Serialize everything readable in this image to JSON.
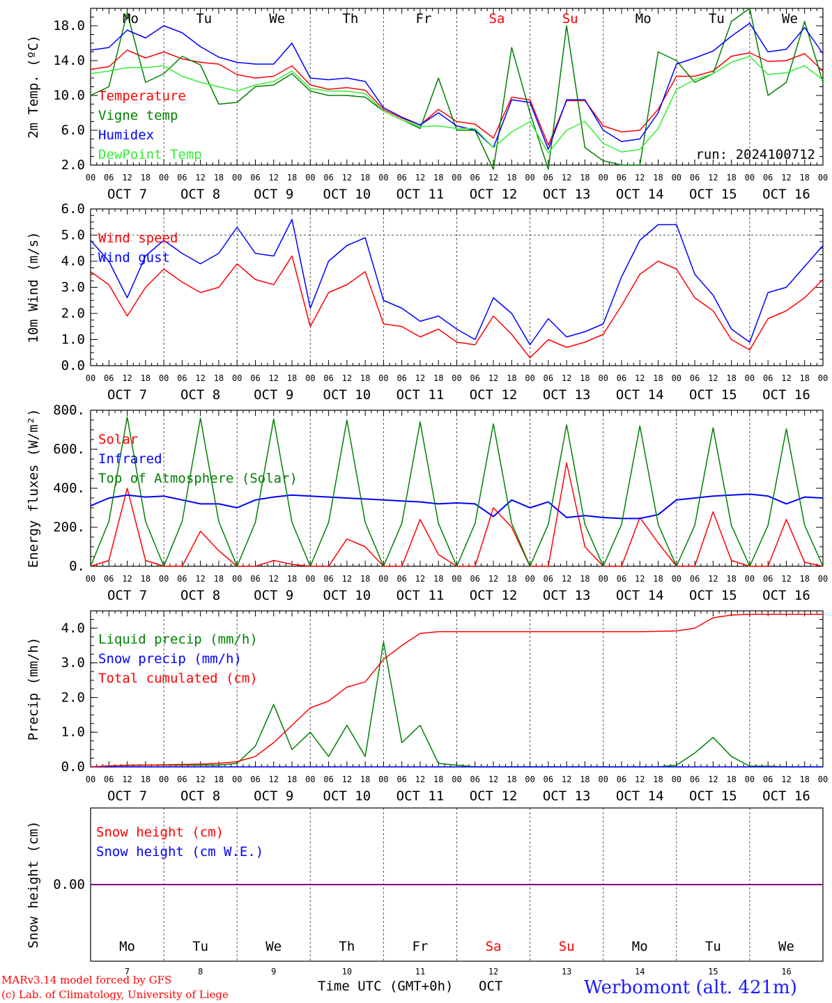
{
  "page": {
    "station": "Werbomont (alt. 421m)",
    "footer_line1": "MARv3.14 model forced by GFS",
    "footer_line2": "(c) Lab. of Climatology, University of Liege",
    "xaxis_title": "Time UTC (GMT+0h)",
    "month": "OCT"
  },
  "colors": {
    "red": "#ff0000",
    "green": "#008000",
    "blue": "#0000ff",
    "lightgreen": "#33ee33",
    "purple": "#800080",
    "weekend": "#ff0000",
    "station": "#1a1aff"
  },
  "days": [
    {
      "weekday": "Mo",
      "date_label": "OCT  7",
      "day": "7"
    },
    {
      "weekday": "Tu",
      "date_label": "OCT  8",
      "day": "8"
    },
    {
      "weekday": "We",
      "date_label": "OCT  9",
      "day": "9"
    },
    {
      "weekday": "Th",
      "date_label": "OCT 10",
      "day": "10"
    },
    {
      "weekday": "Fr",
      "date_label": "OCT 11",
      "day": "11"
    },
    {
      "weekday": "Sa",
      "date_label": "OCT 12",
      "day": "12",
      "weekend": true
    },
    {
      "weekday": "Su",
      "date_label": "OCT 13",
      "day": "13",
      "weekend": true
    },
    {
      "weekday": "Mo",
      "date_label": "OCT 14",
      "day": "14"
    },
    {
      "weekday": "Tu",
      "date_label": "OCT 15",
      "day": "15"
    },
    {
      "weekday": "We",
      "date_label": "OCT 16",
      "day": "16"
    }
  ],
  "hour_ticks": [
    "00",
    "06",
    "12",
    "18"
  ],
  "chart_data": [
    {
      "type": "line",
      "ylabel": "2m Temp. (ºC)",
      "ylim": [
        2,
        20
      ],
      "yticks": [
        "2.0",
        "6.0",
        "10.0",
        "14.0",
        "18.0"
      ],
      "ytick_values": [
        2,
        6,
        10,
        14,
        18
      ],
      "annotation": "run: 2024100712",
      "x_hours": [
        0,
        6,
        12,
        18,
        24,
        30,
        36,
        42,
        48,
        54,
        60,
        66,
        72,
        78,
        84,
        90,
        96,
        102,
        108,
        114,
        120,
        126,
        132,
        138,
        144,
        150,
        156,
        162,
        168,
        174,
        180,
        186,
        192,
        198,
        204,
        210,
        216,
        222,
        228,
        234,
        240
      ],
      "series": [
        {
          "name": "Temperature",
          "color": "red",
          "values": [
            13,
            13.3,
            15.2,
            14.3,
            15,
            14.2,
            13.8,
            13.6,
            12.4,
            12,
            12.2,
            13.4,
            11.2,
            10.7,
            10.9,
            10.6,
            8.4,
            7.4,
            6.6,
            8.4,
            7,
            6.7,
            5.1,
            9.8,
            9.5,
            4.3,
            9.4,
            9.4,
            6.5,
            5.8,
            6,
            8.4,
            12.2,
            12.2,
            12.8,
            14.5,
            14.9,
            13.9,
            14,
            14.8,
            12.8
          ]
        },
        {
          "name": "Vigne temp",
          "color": "green",
          "values": [
            10,
            11,
            19.5,
            11.5,
            12.5,
            14.5,
            13.5,
            9,
            9.2,
            11,
            11.2,
            12.5,
            10.5,
            10,
            10,
            9.8,
            8.2,
            7.2,
            6.2,
            12,
            6,
            6,
            1.5,
            15.5,
            8,
            1.5,
            18,
            4,
            2.5,
            2,
            2,
            15,
            14,
            11.5,
            12.5,
            18.5,
            20,
            10,
            11.5,
            18.5,
            11.5
          ]
        },
        {
          "name": "Humidex",
          "color": "blue",
          "values": [
            15.2,
            15.5,
            17.5,
            16.6,
            18,
            17.2,
            15.6,
            14.4,
            13.8,
            13.6,
            13.6,
            16,
            12,
            11.8,
            12,
            11.6,
            8.6,
            7.5,
            6.6,
            8,
            6.5,
            6,
            4,
            9.5,
            9.2,
            3.8,
            9.5,
            9.5,
            6,
            4.7,
            5,
            8,
            13.6,
            14.3,
            15.1,
            16.8,
            18.3,
            15,
            15.3,
            17.8,
            14.8
          ]
        },
        {
          "name": "DewPoint Temp",
          "color": "lightgreen",
          "values": [
            12.5,
            12.8,
            13.2,
            13.2,
            13.4,
            12.2,
            11.5,
            11,
            10.5,
            11.2,
            11.6,
            12.8,
            10.8,
            10.5,
            10.5,
            10.2,
            8.2,
            7.2,
            6.4,
            6.5,
            6.2,
            6.2,
            4,
            5.8,
            7,
            3.4,
            6,
            7,
            4.5,
            3.5,
            3.8,
            6.2,
            10.7,
            11.8,
            12.5,
            13.8,
            14.5,
            12.4,
            12.6,
            13.4,
            11.8
          ]
        }
      ]
    },
    {
      "type": "line",
      "ylabel": "10m Wind (m/s)",
      "ylim": [
        0,
        6
      ],
      "yticks": [
        "0.0",
        "1.0",
        "2.0",
        "3.0",
        "4.0",
        "5.0",
        "6.0"
      ],
      "ytick_values": [
        0,
        1,
        2,
        3,
        4,
        5,
        6
      ],
      "reference_line": 5,
      "x_hours": [
        0,
        6,
        12,
        18,
        24,
        30,
        36,
        42,
        48,
        54,
        60,
        66,
        72,
        78,
        84,
        90,
        96,
        102,
        108,
        114,
        120,
        126,
        132,
        138,
        144,
        150,
        156,
        162,
        168,
        174,
        180,
        186,
        192,
        198,
        204,
        210,
        216,
        222,
        228,
        234,
        240
      ],
      "series": [
        {
          "name": "Wind speed",
          "color": "red",
          "values": [
            3.6,
            3.1,
            1.9,
            3,
            3.7,
            3.2,
            2.8,
            3,
            3.9,
            3.3,
            3.1,
            4.2,
            1.5,
            2.8,
            3.1,
            3.6,
            1.6,
            1.5,
            1.1,
            1.4,
            0.9,
            0.8,
            1.9,
            1.2,
            0.3,
            1,
            0.7,
            0.9,
            1.2,
            2.3,
            3.5,
            4,
            3.7,
            2.6,
            2.1,
            1,
            0.6,
            1.8,
            2.1,
            2.6,
            3.3
          ]
        },
        {
          "name": "Wind gust",
          "color": "blue",
          "values": [
            4.8,
            4,
            2.6,
            4.2,
            4.8,
            4.3,
            3.9,
            4.3,
            5.3,
            4.3,
            4.2,
            5.6,
            2.2,
            4,
            4.6,
            4.9,
            2.5,
            2.2,
            1.7,
            1.9,
            1.4,
            1,
            2.6,
            2,
            0.8,
            1.8,
            1.1,
            1.3,
            1.6,
            3.4,
            4.8,
            5.4,
            5.4,
            3.5,
            2.7,
            1.4,
            0.9,
            2.8,
            3,
            3.8,
            4.6
          ]
        }
      ]
    },
    {
      "type": "line",
      "ylabel": "Energy fluxes (W/m²)",
      "ylim": [
        0,
        800
      ],
      "yticks": [
        "0.",
        "200.",
        "400.",
        "600.",
        "800."
      ],
      "ytick_values": [
        0,
        200,
        400,
        600,
        800
      ],
      "x_hours": [
        0,
        6,
        12,
        18,
        24,
        30,
        36,
        42,
        48,
        54,
        60,
        66,
        72,
        78,
        84,
        90,
        96,
        102,
        108,
        114,
        120,
        126,
        132,
        138,
        144,
        150,
        156,
        162,
        168,
        174,
        180,
        186,
        192,
        198,
        204,
        210,
        216,
        222,
        228,
        234,
        240
      ],
      "series": [
        {
          "name": "Solar",
          "color": "red",
          "values": [
            0,
            30,
            400,
            30,
            0,
            0,
            180,
            80,
            0,
            0,
            30,
            10,
            0,
            0,
            140,
            100,
            0,
            0,
            240,
            60,
            0,
            0,
            300,
            200,
            0,
            0,
            530,
            100,
            0,
            0,
            250,
            120,
            0,
            0,
            280,
            30,
            0,
            0,
            240,
            20,
            0
          ]
        },
        {
          "name": "Infrared",
          "color": "blue",
          "values": [
            310,
            350,
            365,
            355,
            360,
            340,
            320,
            320,
            300,
            340,
            355,
            365,
            360,
            355,
            350,
            345,
            340,
            335,
            330,
            320,
            325,
            320,
            255,
            340,
            300,
            330,
            250,
            260,
            250,
            245,
            245,
            265,
            340,
            350,
            360,
            365,
            370,
            360,
            320,
            355,
            350
          ]
        },
        {
          "name": "Top of Atmosphere (Solar)",
          "color": "green",
          "values": [
            0,
            230,
            765,
            230,
            0,
            230,
            760,
            230,
            0,
            225,
            755,
            225,
            0,
            225,
            750,
            225,
            0,
            220,
            740,
            220,
            0,
            220,
            730,
            220,
            0,
            215,
            725,
            215,
            0,
            215,
            720,
            215,
            0,
            210,
            710,
            210,
            0,
            210,
            705,
            210,
            0
          ]
        }
      ]
    },
    {
      "type": "line",
      "ylabel": "Precip (mm/h)",
      "ylim": [
        0,
        4.5
      ],
      "yticks": [
        "0.0",
        "1.0",
        "2.0",
        "3.0",
        "4.0"
      ],
      "ytick_values": [
        0,
        1,
        2,
        3,
        4
      ],
      "x_hours": [
        0,
        6,
        12,
        18,
        24,
        30,
        36,
        42,
        48,
        54,
        60,
        66,
        72,
        78,
        84,
        90,
        96,
        102,
        108,
        114,
        120,
        126,
        132,
        138,
        144,
        150,
        156,
        162,
        168,
        174,
        180,
        186,
        192,
        198,
        204,
        210,
        216,
        222,
        228,
        234,
        240
      ],
      "series": [
        {
          "name": "Liquid precip (mm/h)",
          "color": "green",
          "values": [
            0,
            0.02,
            0.05,
            0.05,
            0.05,
            0.05,
            0.05,
            0.05,
            0.1,
            0.6,
            1.8,
            0.5,
            1,
            0.3,
            1.2,
            0.3,
            3.6,
            0.7,
            1.2,
            0.1,
            0.05,
            0,
            0,
            0,
            0,
            0,
            0,
            0,
            0,
            0,
            0,
            0,
            0.05,
            0.4,
            0.85,
            0.3,
            0.02,
            0.02,
            0,
            0,
            0
          ]
        },
        {
          "name": "Snow precip (mm/h)",
          "color": "blue",
          "values": [
            0,
            0,
            0,
            0,
            0,
            0,
            0,
            0,
            0,
            0,
            0,
            0,
            0,
            0,
            0,
            0,
            0,
            0,
            0,
            0,
            0,
            0,
            0,
            0,
            0,
            0,
            0,
            0,
            0,
            0,
            0,
            0,
            0,
            0,
            0,
            0,
            0,
            0,
            0,
            0,
            0
          ]
        },
        {
          "name": "Total cumulated (cm)",
          "color": "red",
          "values": [
            0,
            0.03,
            0.04,
            0.05,
            0.06,
            0.07,
            0.08,
            0.1,
            0.15,
            0.3,
            0.7,
            1.2,
            1.7,
            1.9,
            2.3,
            2.45,
            3.1,
            3.5,
            3.85,
            3.9,
            3.9,
            3.9,
            3.9,
            3.9,
            3.9,
            3.9,
            3.9,
            3.9,
            3.9,
            3.9,
            3.9,
            3.91,
            3.92,
            4.0,
            4.3,
            4.38,
            4.4,
            4.4,
            4.4,
            4.4,
            4.4
          ]
        }
      ]
    },
    {
      "type": "line",
      "ylabel": "Snow height (cm)",
      "ylim": [
        -1,
        1
      ],
      "yticks": [
        "0.00"
      ],
      "ytick_values": [
        0
      ],
      "x_hours": [
        0,
        240
      ],
      "series": [
        {
          "name": "Snow height (cm)",
          "color": "red",
          "values": [
            0,
            0
          ]
        },
        {
          "name": "Snow height (cm W.E.)",
          "color": "blue",
          "values": [
            0,
            0
          ]
        }
      ]
    }
  ]
}
